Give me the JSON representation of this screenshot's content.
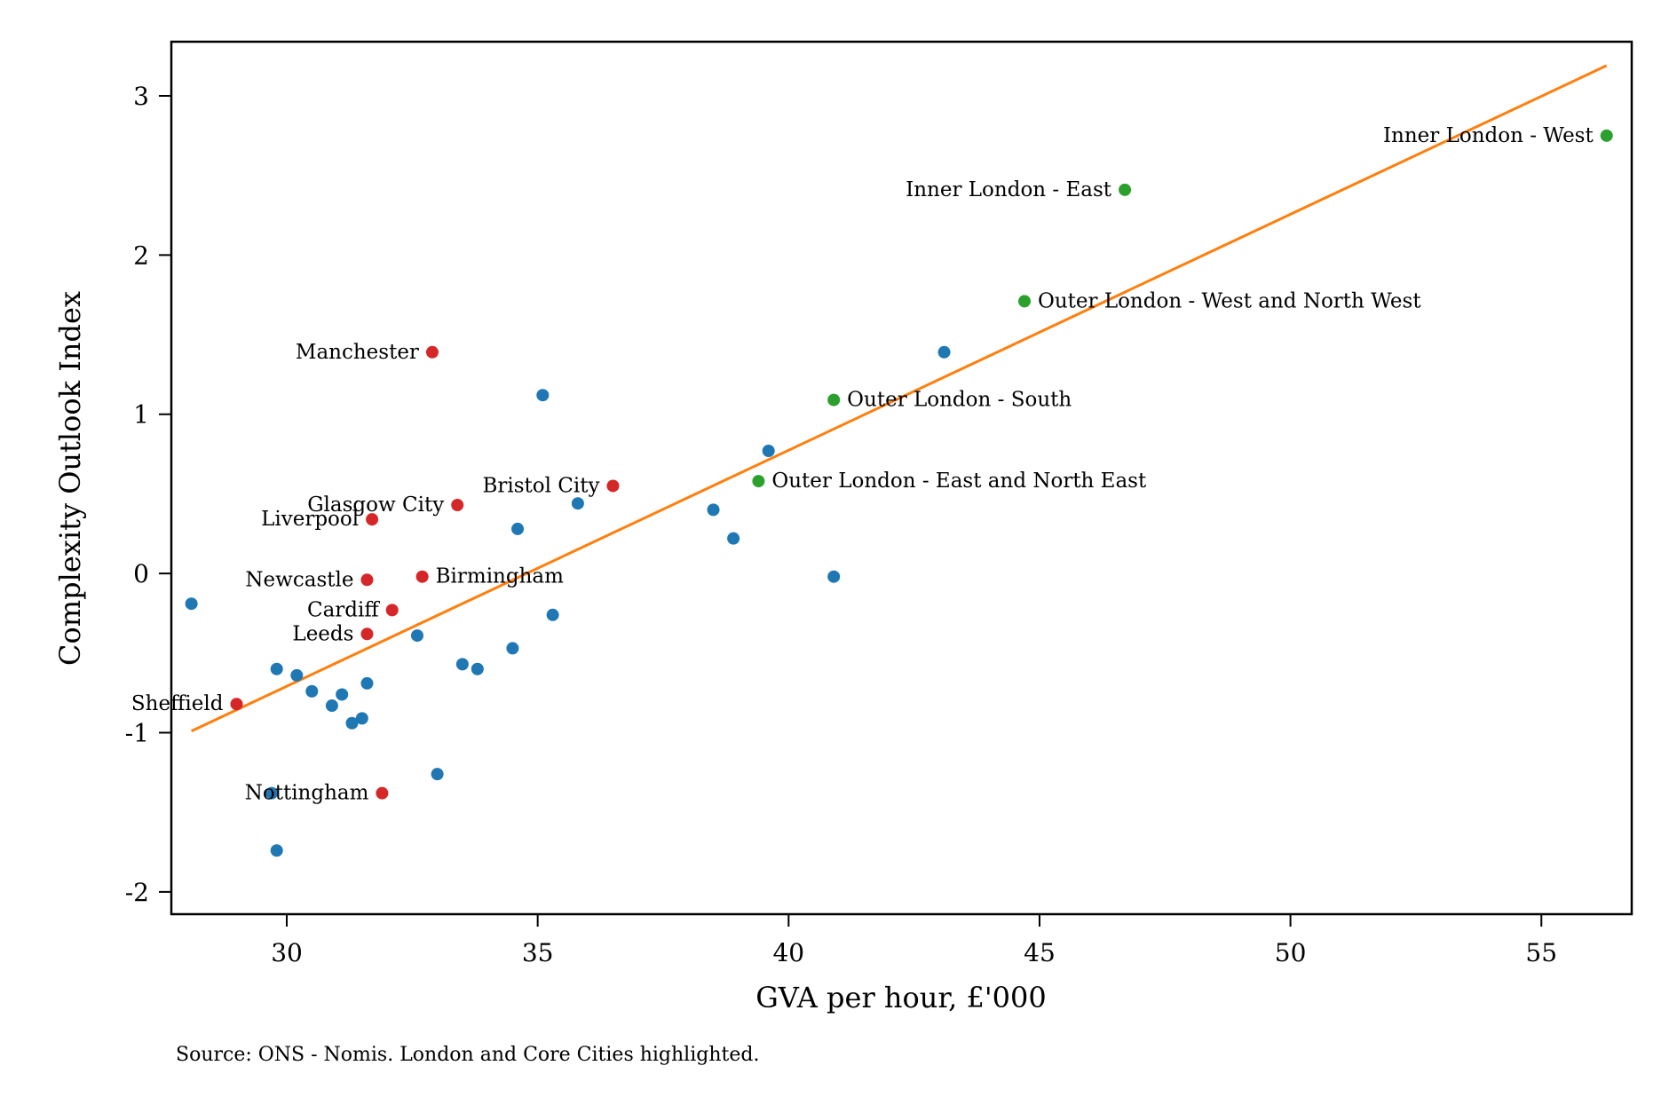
{
  "chart_data": {
    "type": "scatter",
    "title": "",
    "xlabel": "GVA per hour, £'000",
    "ylabel": "Complexity Outlook Index",
    "xlim": [
      27.7,
      56.8
    ],
    "ylim": [
      -2.14,
      3.34
    ],
    "xticks": [
      30,
      35,
      40,
      45,
      50,
      55
    ],
    "xtick_labels": [
      "30",
      "35",
      "40",
      "45",
      "50",
      "55"
    ],
    "yticks": [
      -2,
      -1,
      0,
      1,
      2,
      3
    ],
    "ytick_labels": [
      "-2",
      "-1",
      "0",
      "1",
      "2",
      "3"
    ],
    "grid": false,
    "legend": "none",
    "source_note": "Source: ONS - Nomis. London and Core Cities highlighted.",
    "colors": {
      "other": "#1f77b4",
      "core_city": "#d62728",
      "london": "#2ca02c",
      "fit_line": "#ff7f0e"
    },
    "fit_line": {
      "x": [
        28.1,
        56.3
      ],
      "y": [
        -0.99,
        3.19
      ]
    },
    "points": [
      {
        "x": 56.3,
        "y": 2.75,
        "group": "london",
        "label": "Inner London - West",
        "anchor": "end"
      },
      {
        "x": 46.7,
        "y": 2.41,
        "group": "london",
        "label": "Inner London - East",
        "anchor": "end"
      },
      {
        "x": 44.7,
        "y": 1.71,
        "group": "london",
        "label": "Outer London - West and North West",
        "anchor": "start"
      },
      {
        "x": 40.9,
        "y": 1.09,
        "group": "london",
        "label": "Outer London - South",
        "anchor": "start"
      },
      {
        "x": 39.4,
        "y": 0.58,
        "group": "london",
        "label": "Outer London - East and North East",
        "anchor": "start"
      },
      {
        "x": 32.9,
        "y": 1.39,
        "group": "core_city",
        "label": "Manchester",
        "anchor": "end"
      },
      {
        "x": 36.5,
        "y": 0.55,
        "group": "core_city",
        "label": "Bristol City",
        "anchor": "end"
      },
      {
        "x": 33.4,
        "y": 0.43,
        "group": "core_city",
        "label": "Glasgow City",
        "anchor": "end"
      },
      {
        "x": 31.7,
        "y": 0.34,
        "group": "core_city",
        "label": "Liverpool",
        "anchor": "end"
      },
      {
        "x": 31.6,
        "y": -0.04,
        "group": "core_city",
        "label": "Newcastle",
        "anchor": "end"
      },
      {
        "x": 32.7,
        "y": -0.02,
        "group": "core_city",
        "label": "Birmingham",
        "anchor": "start"
      },
      {
        "x": 32.1,
        "y": -0.23,
        "group": "core_city",
        "label": "Cardiff",
        "anchor": "end"
      },
      {
        "x": 31.6,
        "y": -0.38,
        "group": "core_city",
        "label": "Leeds",
        "anchor": "end"
      },
      {
        "x": 29.0,
        "y": -0.82,
        "group": "core_city",
        "label": "Sheffield",
        "anchor": "end"
      },
      {
        "x": 31.9,
        "y": -1.38,
        "group": "core_city",
        "label": "Nottingham",
        "anchor": "end"
      },
      {
        "x": 28.1,
        "y": -0.19,
        "group": "other"
      },
      {
        "x": 29.8,
        "y": -0.6,
        "group": "other"
      },
      {
        "x": 30.2,
        "y": -0.64,
        "group": "other"
      },
      {
        "x": 30.5,
        "y": -0.74,
        "group": "other"
      },
      {
        "x": 30.9,
        "y": -0.83,
        "group": "other"
      },
      {
        "x": 31.1,
        "y": -0.76,
        "group": "other"
      },
      {
        "x": 31.3,
        "y": -0.94,
        "group": "other"
      },
      {
        "x": 31.5,
        "y": -0.91,
        "group": "other"
      },
      {
        "x": 31.6,
        "y": -0.69,
        "group": "other"
      },
      {
        "x": 29.7,
        "y": -1.38,
        "group": "other"
      },
      {
        "x": 29.8,
        "y": -1.74,
        "group": "other"
      },
      {
        "x": 32.6,
        "y": -0.39,
        "group": "other"
      },
      {
        "x": 33.0,
        "y": -1.26,
        "group": "other"
      },
      {
        "x": 33.5,
        "y": -0.57,
        "group": "other"
      },
      {
        "x": 33.8,
        "y": -0.6,
        "group": "other"
      },
      {
        "x": 34.5,
        "y": -0.47,
        "group": "other"
      },
      {
        "x": 34.6,
        "y": 0.28,
        "group": "other"
      },
      {
        "x": 35.1,
        "y": 1.12,
        "group": "other"
      },
      {
        "x": 35.3,
        "y": -0.26,
        "group": "other"
      },
      {
        "x": 35.8,
        "y": 0.44,
        "group": "other"
      },
      {
        "x": 38.5,
        "y": 0.4,
        "group": "other"
      },
      {
        "x": 38.9,
        "y": 0.22,
        "group": "other"
      },
      {
        "x": 39.6,
        "y": 0.77,
        "group": "other"
      },
      {
        "x": 40.9,
        "y": -0.02,
        "group": "other"
      },
      {
        "x": 43.1,
        "y": 1.39,
        "group": "other"
      }
    ]
  }
}
